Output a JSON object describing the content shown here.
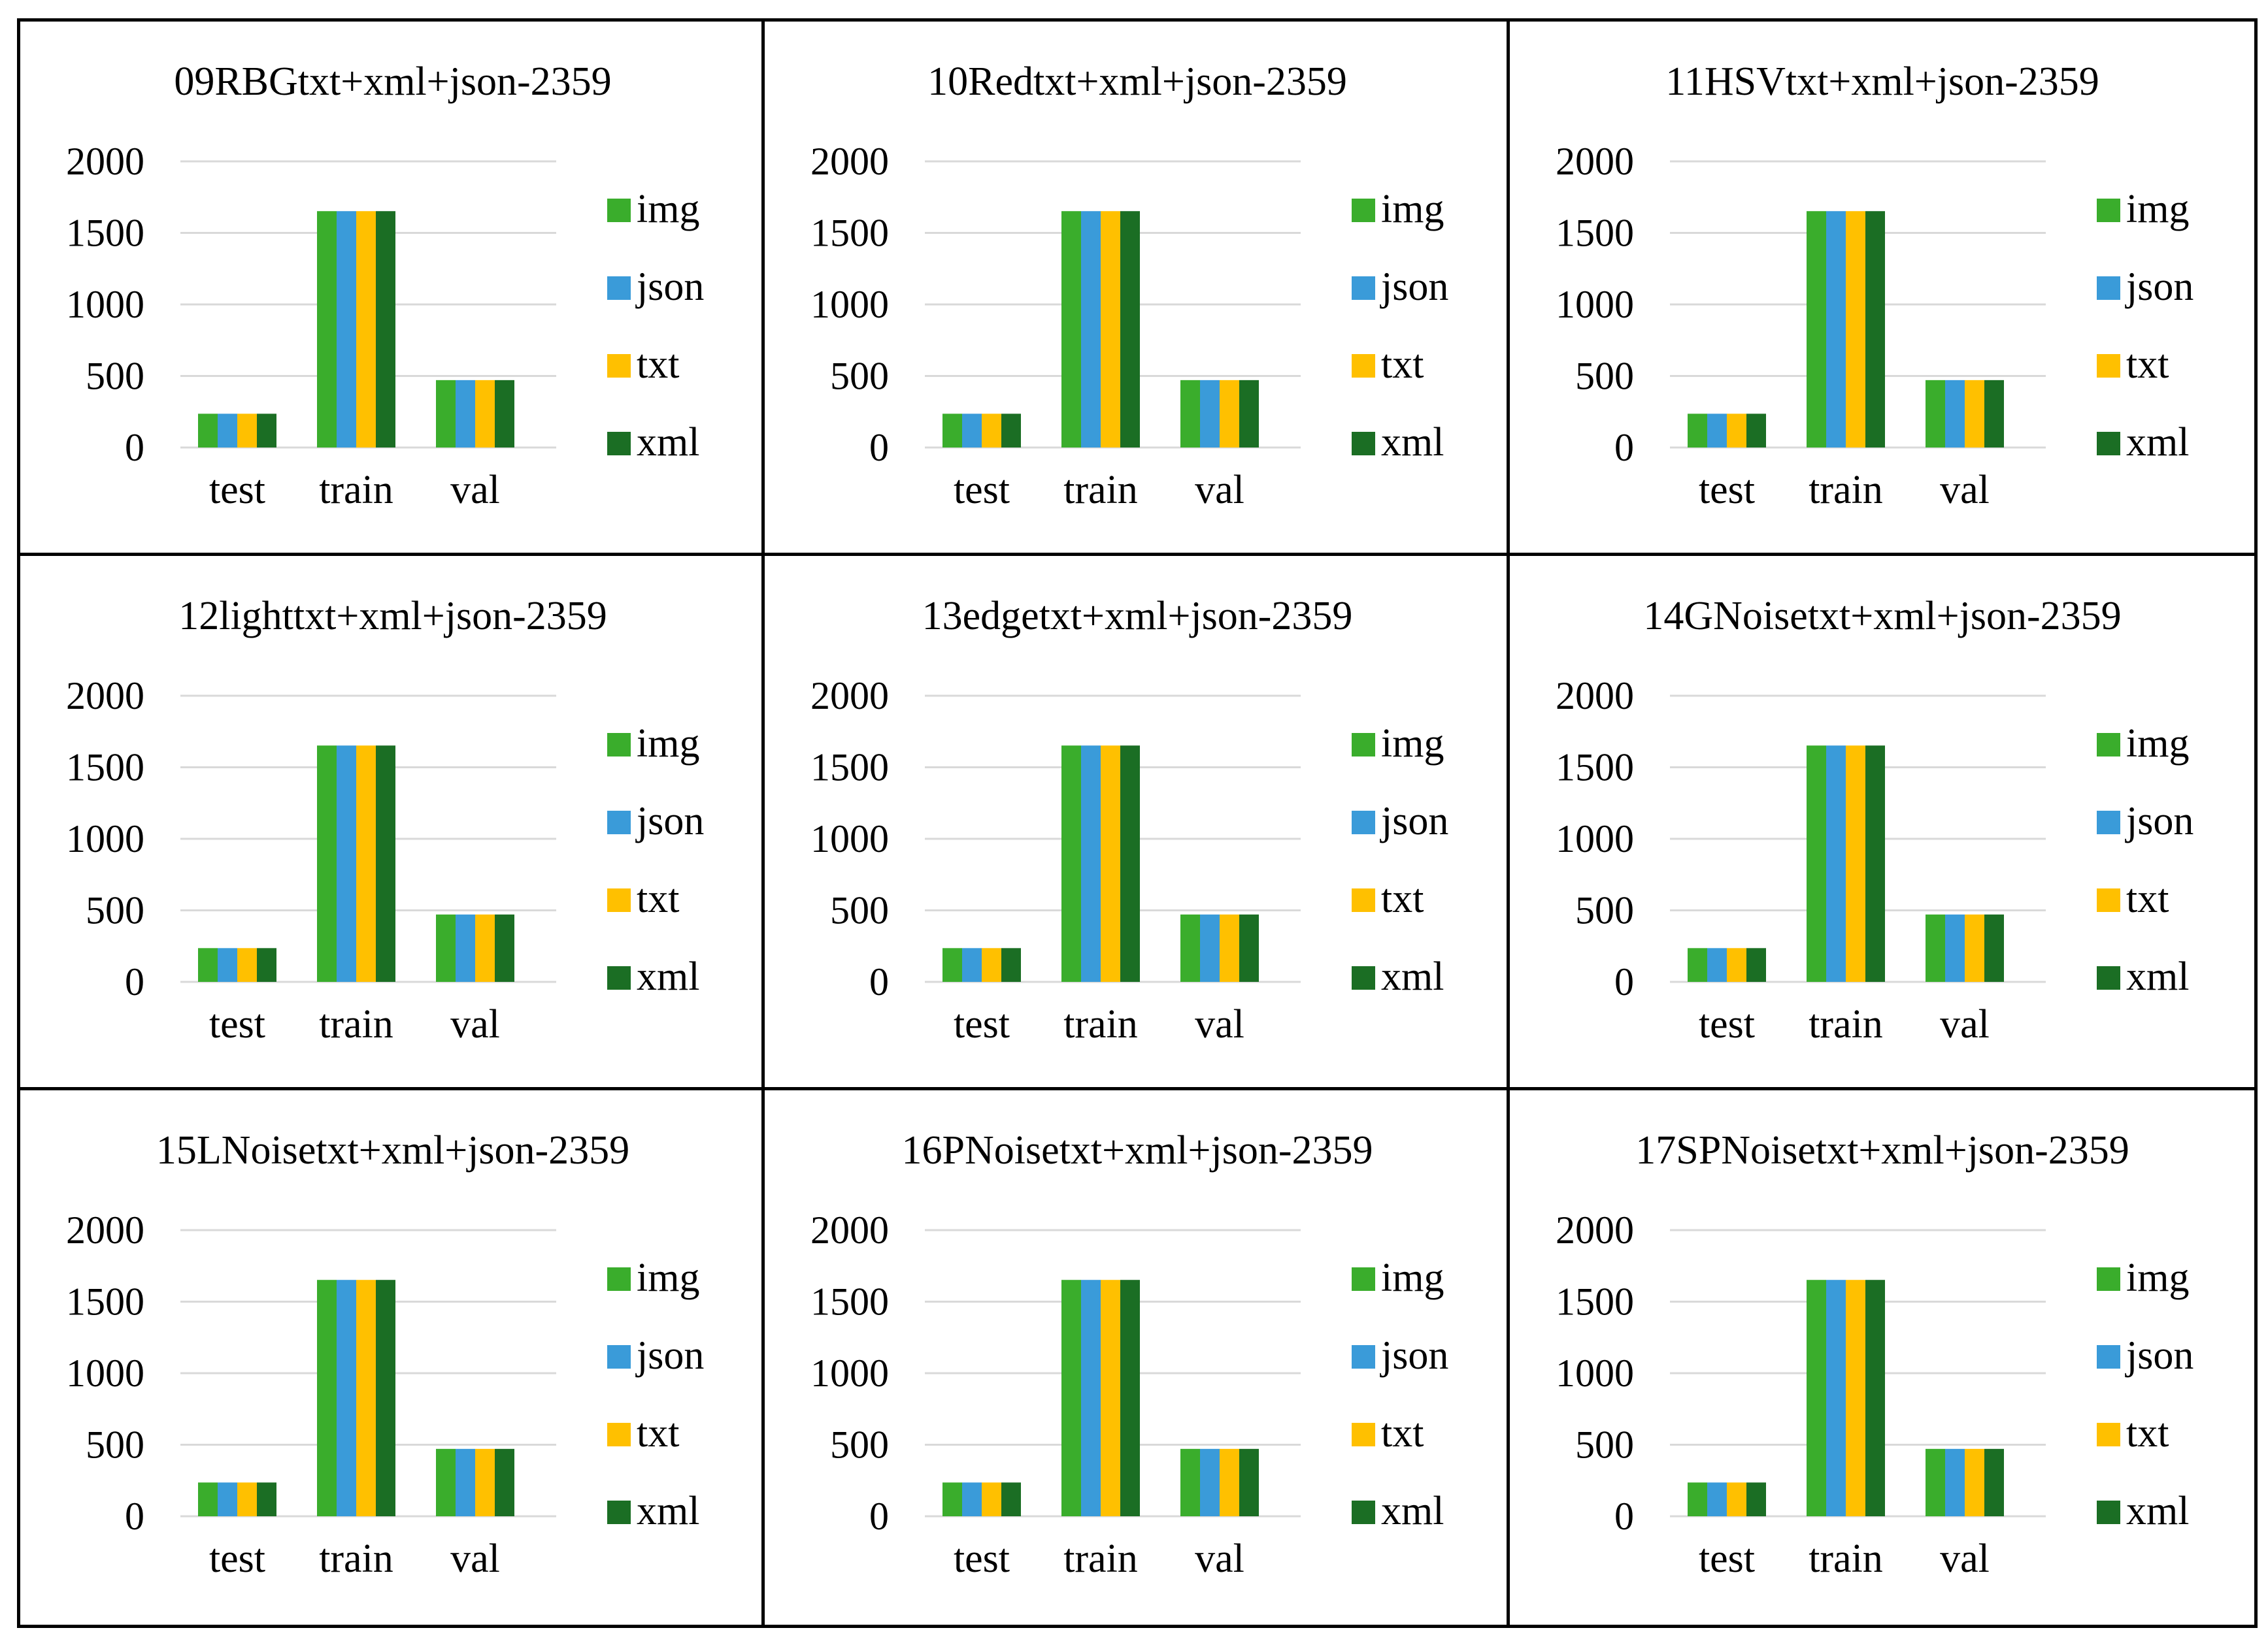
{
  "chart_data": [
    {
      "type": "bar",
      "title": "09RBGtxt+xml+json-2359",
      "categories": [
        "test",
        "train",
        "val"
      ],
      "series": [
        {
          "name": "img",
          "values": [
            236,
            1652,
            471
          ]
        },
        {
          "name": "json",
          "values": [
            236,
            1652,
            471
          ]
        },
        {
          "name": "txt",
          "values": [
            236,
            1652,
            471
          ]
        },
        {
          "name": "xml",
          "values": [
            236,
            1652,
            471
          ]
        }
      ],
      "ylim": [
        0,
        2000
      ],
      "yticks": [
        "0",
        "500",
        "1000",
        "1500",
        "2000"
      ],
      "grid": true,
      "legend": "right"
    },
    {
      "type": "bar",
      "title": "10Redtxt+xml+json-2359",
      "categories": [
        "test",
        "train",
        "val"
      ],
      "series": [
        {
          "name": "img",
          "values": [
            236,
            1652,
            471
          ]
        },
        {
          "name": "json",
          "values": [
            236,
            1652,
            471
          ]
        },
        {
          "name": "txt",
          "values": [
            236,
            1652,
            471
          ]
        },
        {
          "name": "xml",
          "values": [
            236,
            1652,
            471
          ]
        }
      ],
      "ylim": [
        0,
        2000
      ],
      "yticks": [
        "0",
        "500",
        "1000",
        "1500",
        "2000"
      ],
      "grid": true,
      "legend": "right"
    },
    {
      "type": "bar",
      "title": "11HSVtxt+xml+json-2359",
      "categories": [
        "test",
        "train",
        "val"
      ],
      "series": [
        {
          "name": "img",
          "values": [
            236,
            1652,
            471
          ]
        },
        {
          "name": "json",
          "values": [
            236,
            1652,
            471
          ]
        },
        {
          "name": "txt",
          "values": [
            236,
            1652,
            471
          ]
        },
        {
          "name": "xml",
          "values": [
            236,
            1652,
            471
          ]
        }
      ],
      "ylim": [
        0,
        2000
      ],
      "yticks": [
        "0",
        "500",
        "1000",
        "1500",
        "2000"
      ],
      "grid": true,
      "legend": "right"
    },
    {
      "type": "bar",
      "title": "12lighttxt+xml+json-2359",
      "categories": [
        "test",
        "train",
        "val"
      ],
      "series": [
        {
          "name": "img",
          "values": [
            236,
            1652,
            471
          ]
        },
        {
          "name": "json",
          "values": [
            236,
            1652,
            471
          ]
        },
        {
          "name": "txt",
          "values": [
            236,
            1652,
            471
          ]
        },
        {
          "name": "xml",
          "values": [
            236,
            1652,
            471
          ]
        }
      ],
      "ylim": [
        0,
        2000
      ],
      "yticks": [
        "0",
        "500",
        "1000",
        "1500",
        "2000"
      ],
      "grid": true,
      "legend": "right"
    },
    {
      "type": "bar",
      "title": "13edgetxt+xml+json-2359",
      "categories": [
        "test",
        "train",
        "val"
      ],
      "series": [
        {
          "name": "img",
          "values": [
            236,
            1652,
            471
          ]
        },
        {
          "name": "json",
          "values": [
            236,
            1652,
            471
          ]
        },
        {
          "name": "txt",
          "values": [
            236,
            1652,
            471
          ]
        },
        {
          "name": "xml",
          "values": [
            236,
            1652,
            471
          ]
        }
      ],
      "ylim": [
        0,
        2000
      ],
      "yticks": [
        "0",
        "500",
        "1000",
        "1500",
        "2000"
      ],
      "grid": true,
      "legend": "right"
    },
    {
      "type": "bar",
      "title": "14GNoisetxt+xml+json-2359",
      "categories": [
        "test",
        "train",
        "val"
      ],
      "series": [
        {
          "name": "img",
          "values": [
            236,
            1652,
            471
          ]
        },
        {
          "name": "json",
          "values": [
            236,
            1652,
            471
          ]
        },
        {
          "name": "txt",
          "values": [
            236,
            1652,
            471
          ]
        },
        {
          "name": "xml",
          "values": [
            236,
            1652,
            471
          ]
        }
      ],
      "ylim": [
        0,
        2000
      ],
      "yticks": [
        "0",
        "500",
        "1000",
        "1500",
        "2000"
      ],
      "grid": true,
      "legend": "right"
    },
    {
      "type": "bar",
      "title": "15LNoisetxt+xml+json-2359",
      "categories": [
        "test",
        "train",
        "val"
      ],
      "series": [
        {
          "name": "img",
          "values": [
            236,
            1652,
            471
          ]
        },
        {
          "name": "json",
          "values": [
            236,
            1652,
            471
          ]
        },
        {
          "name": "txt",
          "values": [
            236,
            1652,
            471
          ]
        },
        {
          "name": "xml",
          "values": [
            236,
            1652,
            471
          ]
        }
      ],
      "ylim": [
        0,
        2000
      ],
      "yticks": [
        "0",
        "500",
        "1000",
        "1500",
        "2000"
      ],
      "grid": true,
      "legend": "right"
    },
    {
      "type": "bar",
      "title": "16PNoisetxt+xml+json-2359",
      "categories": [
        "test",
        "train",
        "val"
      ],
      "series": [
        {
          "name": "img",
          "values": [
            236,
            1652,
            471
          ]
        },
        {
          "name": "json",
          "values": [
            236,
            1652,
            471
          ]
        },
        {
          "name": "txt",
          "values": [
            236,
            1652,
            471
          ]
        },
        {
          "name": "xml",
          "values": [
            236,
            1652,
            471
          ]
        }
      ],
      "ylim": [
        0,
        2000
      ],
      "yticks": [
        "0",
        "500",
        "1000",
        "1500",
        "2000"
      ],
      "grid": true,
      "legend": "right"
    },
    {
      "type": "bar",
      "title": "17SPNoisetxt+xml+json-2359",
      "categories": [
        "test",
        "train",
        "val"
      ],
      "series": [
        {
          "name": "img",
          "values": [
            236,
            1652,
            471
          ]
        },
        {
          "name": "json",
          "values": [
            236,
            1652,
            471
          ]
        },
        {
          "name": "txt",
          "values": [
            236,
            1652,
            471
          ]
        },
        {
          "name": "xml",
          "values": [
            236,
            1652,
            471
          ]
        }
      ],
      "ylim": [
        0,
        2000
      ],
      "yticks": [
        "0",
        "500",
        "1000",
        "1500",
        "2000"
      ],
      "grid": true,
      "legend": "right"
    }
  ],
  "colors": {
    "img": "#3aad2c",
    "json": "#3a9bd9",
    "txt": "#ffc000",
    "xml": "#1b6e24",
    "grid": "#d9d9d9"
  }
}
